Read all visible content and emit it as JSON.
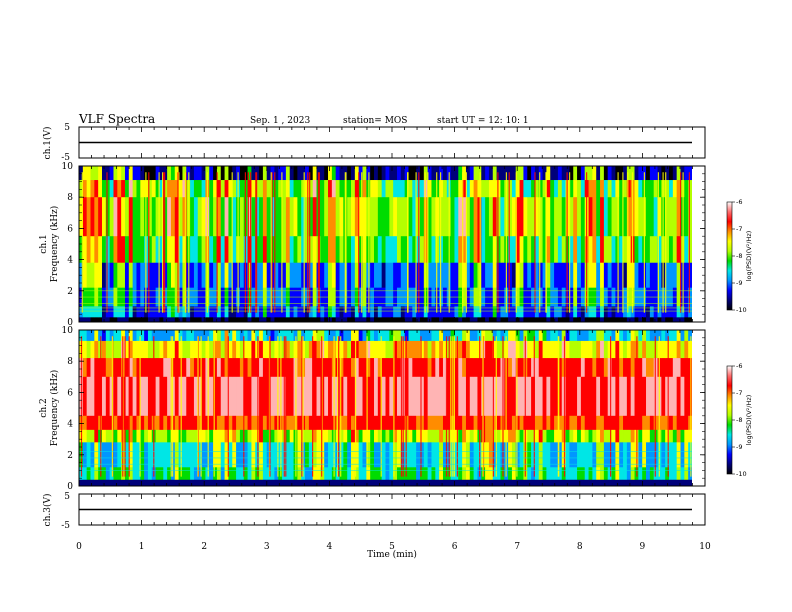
{
  "header": {
    "title": "VLF Spectra",
    "date": "Sep. 1 , 2023",
    "station": "station= MOS",
    "start": "start  UT =   12: 10: 1"
  },
  "colors": {
    "spectrum": [
      "#000000",
      "#00007a",
      "#0000ff",
      "#0096ff",
      "#00e6e6",
      "#00dc00",
      "#b4ff00",
      "#ffff00",
      "#ff8c00",
      "#ff0000",
      "#ffb4b4",
      "#ffffff"
    ]
  },
  "chart_data": [
    {
      "type": "line",
      "panel": "ch1-waveform",
      "ylabel": "ch.1(V)",
      "ylim": [
        -5,
        5
      ],
      "yticks": [
        "5",
        "-5"
      ],
      "xlim": [
        0,
        10
      ],
      "level": 0
    },
    {
      "type": "heatmap",
      "panel": "ch1-spectrogram",
      "ylabel": "ch.1\nFrequency (kHz)",
      "ylabel_lines": [
        "ch.1",
        "Frequency (kHz)"
      ],
      "ylim": [
        0,
        10
      ],
      "yticks": [
        "0",
        "2",
        "4",
        "6",
        "8",
        "10"
      ],
      "xlim": [
        0,
        9.83
      ],
      "colorbar": {
        "label": "log(PSD)(V²/Hz)",
        "range": [
          -10,
          -6
        ],
        "ticks": [
          "-6",
          "-7",
          "-8",
          "-9",
          "-10"
        ]
      }
    },
    {
      "type": "heatmap",
      "panel": "ch2-spectrogram",
      "ylabel": "ch.2\nFrequency (kHz)",
      "ylabel_lines": [
        "ch.2",
        "Frequency (kHz)"
      ],
      "ylim": [
        0,
        10
      ],
      "yticks": [
        "0",
        "2",
        "4",
        "6",
        "8",
        "10"
      ],
      "xlim": [
        0,
        9.83
      ],
      "colorbar": {
        "label": "log(PSD)(V²/Hz)",
        "range": [
          -10,
          -6
        ],
        "ticks": [
          "-6",
          "-7",
          "-8",
          "-9",
          "-10"
        ]
      }
    },
    {
      "type": "line",
      "panel": "ch3-waveform",
      "ylabel": "ch.3(V)",
      "ylim": [
        -5,
        5
      ],
      "yticks": [
        "5",
        "-5"
      ],
      "xlim": [
        0,
        10
      ],
      "level": 0
    }
  ],
  "xaxis": {
    "label": "Time (min)",
    "ticks": [
      "0",
      "1",
      "2",
      "3",
      "4",
      "5",
      "6",
      "7",
      "8",
      "9",
      "10"
    ]
  }
}
